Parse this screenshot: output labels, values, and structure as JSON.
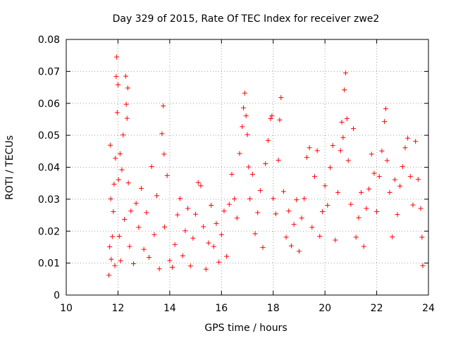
{
  "chart_data": {
    "type": "scatter",
    "title": "Day 329 of 2015, Rate Of TEC Index for receiver zwe2",
    "xlabel": "GPS time / hours",
    "ylabel": "ROTI / TECUs",
    "xlim": [
      10,
      24
    ],
    "ylim": [
      0,
      0.08
    ],
    "x_ticks": [
      10,
      12,
      14,
      16,
      18,
      20,
      22,
      24
    ],
    "x_tick_labels": [
      "10",
      "12",
      "14",
      "16",
      "18",
      "20",
      "22",
      "24"
    ],
    "y_ticks": [
      0,
      0.01,
      0.02,
      0.03,
      0.04,
      0.05,
      0.06,
      0.07,
      0.08
    ],
    "y_tick_labels": [
      "0",
      "0.01",
      "0.02",
      "0.03",
      "0.04",
      "0.05",
      "0.06",
      "0.07",
      "0.08"
    ],
    "grid": true,
    "marker": "+",
    "color": "#ff0000",
    "series": [
      {
        "name": "ROTI",
        "points": [
          [
            11.65,
            0.0062
          ],
          [
            11.68,
            0.0151
          ],
          [
            11.7,
            0.0469
          ],
          [
            11.72,
            0.0301
          ],
          [
            11.74,
            0.0112
          ],
          [
            11.78,
            0.0183
          ],
          [
            11.82,
            0.0261
          ],
          [
            11.85,
            0.0347
          ],
          [
            11.88,
            0.0092
          ],
          [
            11.9,
            0.0428
          ],
          [
            11.93,
            0.0684
          ],
          [
            11.95,
            0.0745
          ],
          [
            11.97,
            0.0571
          ],
          [
            12.0,
            0.0658
          ],
          [
            12.02,
            0.0361
          ],
          [
            12.05,
            0.0184
          ],
          [
            12.08,
            0.0442
          ],
          [
            12.1,
            0.0107
          ],
          [
            12.15,
            0.0392
          ],
          [
            12.2,
            0.0501
          ],
          [
            12.25,
            0.0237
          ],
          [
            12.3,
            0.0685
          ],
          [
            12.32,
            0.0597
          ],
          [
            12.35,
            0.0553
          ],
          [
            12.38,
            0.0648
          ],
          [
            12.4,
            0.0351
          ],
          [
            12.45,
            0.0152
          ],
          [
            12.5,
            0.0263
          ],
          [
            12.6,
            0.0098
          ],
          [
            12.7,
            0.0287
          ],
          [
            12.8,
            0.0212
          ],
          [
            12.9,
            0.0334
          ],
          [
            13.0,
            0.0143
          ],
          [
            13.1,
            0.0258
          ],
          [
            13.2,
            0.0118
          ],
          [
            13.3,
            0.0402
          ],
          [
            13.4,
            0.0189
          ],
          [
            13.5,
            0.0311
          ],
          [
            13.6,
            0.0082
          ],
          [
            13.7,
            0.0505
          ],
          [
            13.75,
            0.0592
          ],
          [
            13.78,
            0.0441
          ],
          [
            13.8,
            0.0213
          ],
          [
            13.9,
            0.0374
          ],
          [
            14.0,
            0.0108
          ],
          [
            14.1,
            0.0087
          ],
          [
            14.2,
            0.0158
          ],
          [
            14.3,
            0.0251
          ],
          [
            14.4,
            0.0302
          ],
          [
            14.5,
            0.0123
          ],
          [
            14.6,
            0.0201
          ],
          [
            14.7,
            0.0271
          ],
          [
            14.8,
            0.0091
          ],
          [
            14.9,
            0.0178
          ],
          [
            15.0,
            0.0253
          ],
          [
            15.1,
            0.0352
          ],
          [
            15.2,
            0.0342
          ],
          [
            15.3,
            0.0214
          ],
          [
            15.4,
            0.0081
          ],
          [
            15.5,
            0.0163
          ],
          [
            15.6,
            0.0281
          ],
          [
            15.7,
            0.0152
          ],
          [
            15.8,
            0.0224
          ],
          [
            15.9,
            0.0103
          ],
          [
            16.0,
            0.0189
          ],
          [
            16.1,
            0.0263
          ],
          [
            16.2,
            0.0121
          ],
          [
            16.3,
            0.0284
          ],
          [
            16.4,
            0.0378
          ],
          [
            16.5,
            0.0301
          ],
          [
            16.6,
            0.0241
          ],
          [
            16.7,
            0.0443
          ],
          [
            16.8,
            0.0527
          ],
          [
            16.85,
            0.0586
          ],
          [
            16.9,
            0.0632
          ],
          [
            16.95,
            0.0561
          ],
          [
            17.0,
            0.0502
          ],
          [
            17.05,
            0.0401
          ],
          [
            17.1,
            0.0301
          ],
          [
            17.2,
            0.0378
          ],
          [
            17.3,
            0.0192
          ],
          [
            17.4,
            0.0258
          ],
          [
            17.5,
            0.0327
          ],
          [
            17.6,
            0.0149
          ],
          [
            17.7,
            0.0411
          ],
          [
            17.8,
            0.0484
          ],
          [
            17.9,
            0.0552
          ],
          [
            17.95,
            0.0561
          ],
          [
            18.0,
            0.0302
          ],
          [
            18.1,
            0.0254
          ],
          [
            18.2,
            0.0422
          ],
          [
            18.25,
            0.0548
          ],
          [
            18.3,
            0.0618
          ],
          [
            18.4,
            0.0324
          ],
          [
            18.5,
            0.0181
          ],
          [
            18.6,
            0.0263
          ],
          [
            18.7,
            0.0154
          ],
          [
            18.8,
            0.0221
          ],
          [
            18.9,
            0.0298
          ],
          [
            19.0,
            0.0137
          ],
          [
            19.1,
            0.0241
          ],
          [
            19.2,
            0.0302
          ],
          [
            19.3,
            0.0431
          ],
          [
            19.4,
            0.0461
          ],
          [
            19.5,
            0.0212
          ],
          [
            19.6,
            0.0371
          ],
          [
            19.7,
            0.0452
          ],
          [
            19.8,
            0.0184
          ],
          [
            19.9,
            0.0261
          ],
          [
            20.0,
            0.0342
          ],
          [
            20.1,
            0.0281
          ],
          [
            20.2,
            0.0399
          ],
          [
            20.3,
            0.0468
          ],
          [
            20.4,
            0.0172
          ],
          [
            20.5,
            0.0321
          ],
          [
            20.6,
            0.0452
          ],
          [
            20.65,
            0.0541
          ],
          [
            20.7,
            0.0493
          ],
          [
            20.75,
            0.0642
          ],
          [
            20.8,
            0.0695
          ],
          [
            20.85,
            0.0552
          ],
          [
            20.9,
            0.0421
          ],
          [
            21.0,
            0.0284
          ],
          [
            21.1,
            0.0521
          ],
          [
            21.2,
            0.0181
          ],
          [
            21.3,
            0.0242
          ],
          [
            21.4,
            0.0321
          ],
          [
            21.5,
            0.0152
          ],
          [
            21.6,
            0.0271
          ],
          [
            21.7,
            0.0332
          ],
          [
            21.8,
            0.0441
          ],
          [
            21.9,
            0.0381
          ],
          [
            22.0,
            0.0261
          ],
          [
            22.1,
            0.0371
          ],
          [
            22.2,
            0.0451
          ],
          [
            22.3,
            0.0543
          ],
          [
            22.35,
            0.0583
          ],
          [
            22.4,
            0.0421
          ],
          [
            22.5,
            0.0321
          ],
          [
            22.6,
            0.0182
          ],
          [
            22.7,
            0.0361
          ],
          [
            22.8,
            0.0252
          ],
          [
            22.9,
            0.0341
          ],
          [
            23.0,
            0.0402
          ],
          [
            23.1,
            0.0461
          ],
          [
            23.2,
            0.0491
          ],
          [
            23.3,
            0.0371
          ],
          [
            23.4,
            0.0282
          ],
          [
            23.5,
            0.0481
          ],
          [
            23.6,
            0.0362
          ],
          [
            23.7,
            0.0271
          ],
          [
            23.75,
            0.0181
          ],
          [
            23.78,
            0.0092
          ]
        ]
      }
    ]
  }
}
